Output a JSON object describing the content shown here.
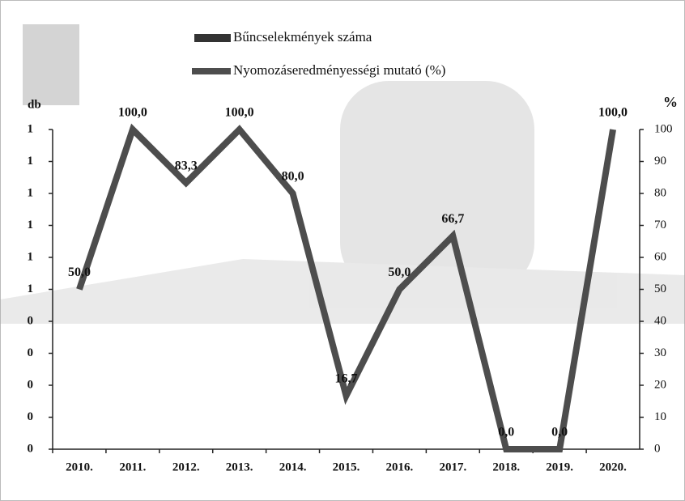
{
  "chart_data": {
    "type": "line",
    "categories": [
      "2010.",
      "2011.",
      "2012.",
      "2013.",
      "2014.",
      "2015.",
      "2016.",
      "2017.",
      "2018.",
      "2019.",
      "2020."
    ],
    "series": [
      {
        "name": "Bűncselekmények száma",
        "color": "#333333",
        "type": "bar",
        "values": [
          0,
          0,
          0,
          0,
          0,
          0,
          0,
          0,
          0,
          0,
          0
        ]
      },
      {
        "name": "Nyomozáseredményességi mutató (%)",
        "color": "#4d4d4d",
        "axis": "y2",
        "values": [
          50,
          100,
          83.3,
          100,
          80,
          16.7,
          50,
          66.7,
          0,
          0,
          100
        ],
        "value_labels": [
          "50,0",
          "100,0",
          "83,3",
          "100,0",
          "80,0",
          "16,7",
          "50,0",
          "66,7",
          "0,0",
          "0,0",
          "100,0"
        ]
      }
    ],
    "ylabel": "db",
    "y2label": "%",
    "ylim": [
      0,
      1
    ],
    "yticks": [
      0,
      {
        "value": 0.1,
        "label": "0"
      },
      {
        "value": 0.2,
        "label": "0"
      },
      {
        "value": 0.3,
        "label": "0"
      },
      {
        "value": 0.4,
        "label": "0"
      },
      {
        "value": 0.5,
        "label": "1"
      },
      {
        "value": 0.6,
        "label": "1"
      },
      {
        "value": 0.7,
        "label": "1"
      },
      {
        "value": 0.8,
        "label": "1"
      },
      {
        "value": 0.9,
        "label": "1"
      },
      1
    ],
    "y2lim": [
      0,
      100
    ],
    "y2ticks": [
      0,
      10,
      20,
      30,
      40,
      50,
      60,
      70,
      80,
      90,
      100
    ]
  }
}
